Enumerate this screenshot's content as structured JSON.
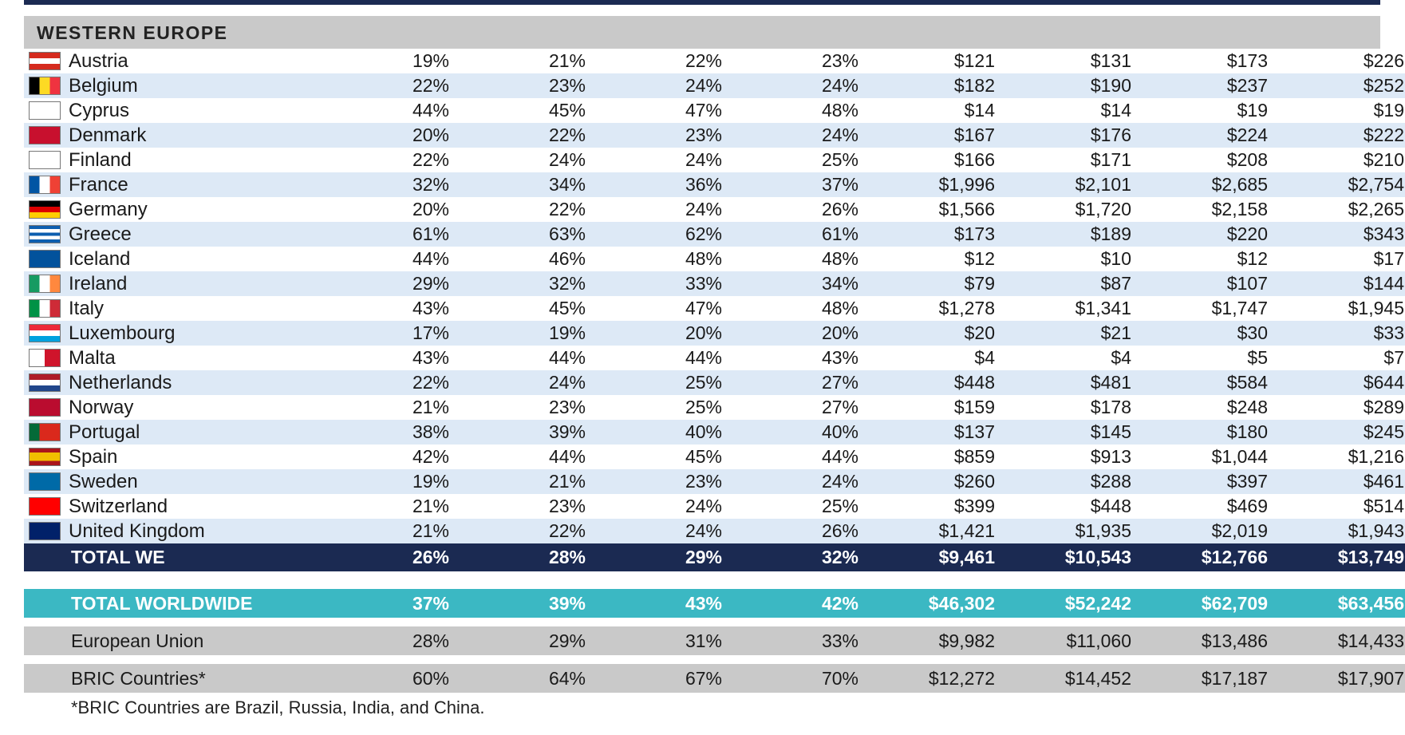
{
  "section": {
    "title": "WESTERN EUROPE"
  },
  "countries": [
    {
      "name": "Austria",
      "flag": "austria-flag-icon",
      "stripes": [
        "#d52b1e",
        "#ffffff",
        "#d52b1e"
      ],
      "dir": "h",
      "pct": [
        "19%",
        "21%",
        "22%",
        "23%"
      ],
      "usd": [
        "$121",
        "$131",
        "$173",
        "$226"
      ]
    },
    {
      "name": "Belgium",
      "flag": "belgium-flag-icon",
      "stripes": [
        "#000000",
        "#fdda24",
        "#ef3340"
      ],
      "dir": "v",
      "pct": [
        "22%",
        "23%",
        "24%",
        "24%"
      ],
      "usd": [
        "$182",
        "$190",
        "$237",
        "$252"
      ]
    },
    {
      "name": "Cyprus",
      "flag": "cyprus-flag-icon",
      "stripes": [
        "#ffffff"
      ],
      "dir": "h",
      "pct": [
        "44%",
        "45%",
        "47%",
        "48%"
      ],
      "usd": [
        "$14",
        "$14",
        "$19",
        "$19"
      ]
    },
    {
      "name": "Denmark",
      "flag": "denmark-flag-icon",
      "stripes": [
        "#c8102e"
      ],
      "dir": "h",
      "pct": [
        "20%",
        "22%",
        "23%",
        "24%"
      ],
      "usd": [
        "$167",
        "$176",
        "$224",
        "$222"
      ]
    },
    {
      "name": "Finland",
      "flag": "finland-flag-icon",
      "stripes": [
        "#ffffff"
      ],
      "dir": "h",
      "pct": [
        "22%",
        "24%",
        "24%",
        "25%"
      ],
      "usd": [
        "$166",
        "$171",
        "$208",
        "$210"
      ]
    },
    {
      "name": "France",
      "flag": "france-flag-icon",
      "stripes": [
        "#0055a4",
        "#ffffff",
        "#ef4135"
      ],
      "dir": "v",
      "pct": [
        "32%",
        "34%",
        "36%",
        "37%"
      ],
      "usd": [
        "$1,996",
        "$2,101",
        "$2,685",
        "$2,754"
      ]
    },
    {
      "name": "Germany",
      "flag": "germany-flag-icon",
      "stripes": [
        "#000000",
        "#dd0000",
        "#ffce00"
      ],
      "dir": "h",
      "pct": [
        "20%",
        "22%",
        "24%",
        "26%"
      ],
      "usd": [
        "$1,566",
        "$1,720",
        "$2,158",
        "$2,265"
      ]
    },
    {
      "name": "Greece",
      "flag": "greece-flag-icon",
      "stripes": [
        "#0d5eaf",
        "#ffffff",
        "#0d5eaf",
        "#ffffff",
        "#0d5eaf"
      ],
      "dir": "h",
      "pct": [
        "61%",
        "63%",
        "62%",
        "61%"
      ],
      "usd": [
        "$173",
        "$189",
        "$220",
        "$343"
      ]
    },
    {
      "name": "Iceland",
      "flag": "iceland-flag-icon",
      "stripes": [
        "#02529c"
      ],
      "dir": "h",
      "pct": [
        "44%",
        "46%",
        "48%",
        "48%"
      ],
      "usd": [
        "$12",
        "$10",
        "$12",
        "$17"
      ]
    },
    {
      "name": "Ireland",
      "flag": "ireland-flag-icon",
      "stripes": [
        "#169b62",
        "#ffffff",
        "#ff883e"
      ],
      "dir": "v",
      "pct": [
        "29%",
        "32%",
        "33%",
        "34%"
      ],
      "usd": [
        "$79",
        "$87",
        "$107",
        "$144"
      ]
    },
    {
      "name": "Italy",
      "flag": "italy-flag-icon",
      "stripes": [
        "#009246",
        "#ffffff",
        "#ce2b37"
      ],
      "dir": "v",
      "pct": [
        "43%",
        "45%",
        "47%",
        "48%"
      ],
      "usd": [
        "$1,278",
        "$1,341",
        "$1,747",
        "$1,945"
      ]
    },
    {
      "name": "Luxembourg",
      "flag": "luxembourg-flag-icon",
      "stripes": [
        "#ed2939",
        "#ffffff",
        "#00a1de"
      ],
      "dir": "h",
      "pct": [
        "17%",
        "19%",
        "20%",
        "20%"
      ],
      "usd": [
        "$20",
        "$21",
        "$30",
        "$33"
      ]
    },
    {
      "name": "Malta",
      "flag": "malta-flag-icon",
      "stripes": [
        "#ffffff",
        "#cf142b"
      ],
      "dir": "v",
      "pct": [
        "43%",
        "44%",
        "44%",
        "43%"
      ],
      "usd": [
        "$4",
        "$4",
        "$5",
        "$7"
      ]
    },
    {
      "name": "Netherlands",
      "flag": "netherlands-flag-icon",
      "stripes": [
        "#ae1c28",
        "#ffffff",
        "#21468b"
      ],
      "dir": "h",
      "pct": [
        "22%",
        "24%",
        "25%",
        "27%"
      ],
      "usd": [
        "$448",
        "$481",
        "$584",
        "$644"
      ]
    },
    {
      "name": "Norway",
      "flag": "norway-flag-icon",
      "stripes": [
        "#ba0c2f"
      ],
      "dir": "h",
      "pct": [
        "21%",
        "23%",
        "25%",
        "27%"
      ],
      "usd": [
        "$159",
        "$178",
        "$248",
        "$289"
      ]
    },
    {
      "name": "Portugal",
      "flag": "portugal-flag-icon",
      "stripes": [
        "#046a38",
        "#da291c",
        "#da291c"
      ],
      "dir": "v",
      "pct": [
        "38%",
        "39%",
        "40%",
        "40%"
      ],
      "usd": [
        "$137",
        "$145",
        "$180",
        "$245"
      ]
    },
    {
      "name": "Spain",
      "flag": "spain-flag-icon",
      "stripes": [
        "#aa151b",
        "#f1bf00",
        "#f1bf00",
        "#aa151b"
      ],
      "dir": "h",
      "pct": [
        "42%",
        "44%",
        "45%",
        "44%"
      ],
      "usd": [
        "$859",
        "$913",
        "$1,044",
        "$1,216"
      ]
    },
    {
      "name": "Sweden",
      "flag": "sweden-flag-icon",
      "stripes": [
        "#006aa7"
      ],
      "dir": "h",
      "pct": [
        "19%",
        "21%",
        "23%",
        "24%"
      ],
      "usd": [
        "$260",
        "$288",
        "$397",
        "$461"
      ]
    },
    {
      "name": "Switzerland",
      "flag": "switzerland-flag-icon",
      "stripes": [
        "#ff0000"
      ],
      "dir": "h",
      "pct": [
        "21%",
        "23%",
        "24%",
        "25%"
      ],
      "usd": [
        "$399",
        "$448",
        "$469",
        "$514"
      ]
    },
    {
      "name": "United Kingdom",
      "flag": "uk-flag-icon",
      "stripes": [
        "#012169"
      ],
      "dir": "h",
      "pct": [
        "21%",
        "22%",
        "24%",
        "26%"
      ],
      "usd": [
        "$1,421",
        "$1,935",
        "$2,019",
        "$1,943"
      ]
    }
  ],
  "total_we": {
    "label": "TOTAL WE",
    "pct": [
      "26%",
      "28%",
      "29%",
      "32%"
    ],
    "usd": [
      "$9,461",
      "$10,543",
      "$12,766",
      "$13,749"
    ]
  },
  "total_worldwide": {
    "label": "TOTAL WORLDWIDE",
    "pct": [
      "37%",
      "39%",
      "43%",
      "42%"
    ],
    "usd": [
      "$46,302",
      "$52,242",
      "$62,709",
      "$63,456"
    ]
  },
  "european_union": {
    "label": "European Union",
    "pct": [
      "28%",
      "29%",
      "31%",
      "33%"
    ],
    "usd": [
      "$9,982",
      "$11,060",
      "$13,486",
      "$14,433"
    ]
  },
  "bric": {
    "label": "BRIC Countries*",
    "pct": [
      "60%",
      "64%",
      "67%",
      "70%"
    ],
    "usd": [
      "$12,272",
      "$14,452",
      "$17,187",
      "$17,907"
    ]
  },
  "footnote": "*BRIC Countries are Brazil, Russia, India, and China.",
  "colors": {
    "navy": "#1b2a52",
    "teal": "#3bb8c3",
    "gray": "#c9c9c9",
    "row_alt": "#dde9f6"
  }
}
